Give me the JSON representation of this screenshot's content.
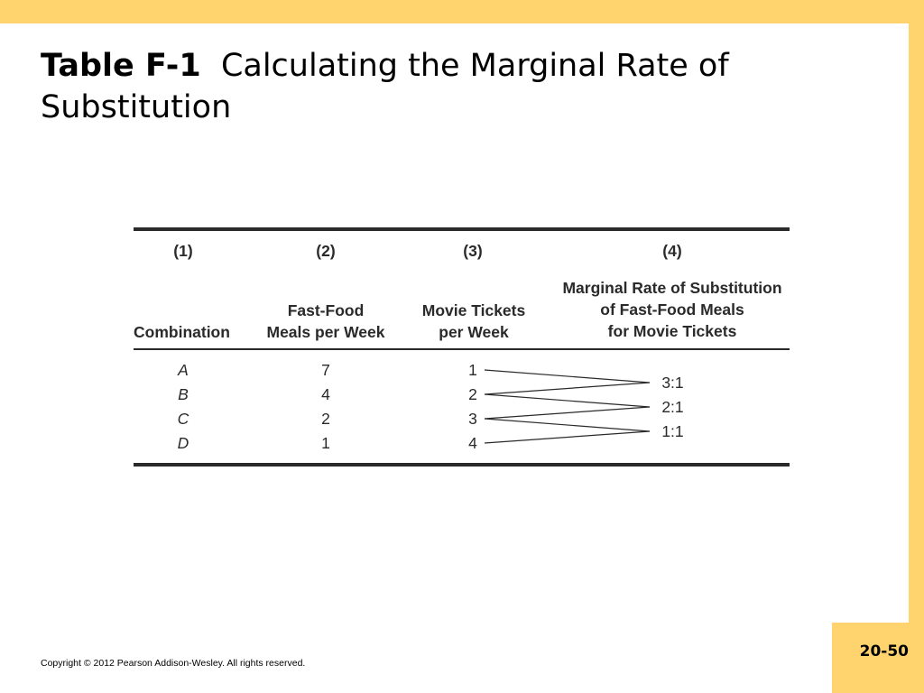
{
  "slide": {
    "title_label": "Table F-1",
    "title_text": "Calculating the Marginal Rate of Substitution",
    "copyright": "Copyright © 2012 Pearson Addison-Wesley. All rights reserved.",
    "page_number": "20-50"
  },
  "table": {
    "column_numbers": [
      "(1)",
      "(2)",
      "(3)",
      "(4)"
    ],
    "column_headers": [
      [
        "Combination"
      ],
      [
        "Fast-Food",
        "Meals per Week"
      ],
      [
        "Movie Tickets",
        "per Week"
      ],
      [
        "Marginal Rate of Substitution",
        "of Fast-Food Meals",
        "for Movie Tickets"
      ]
    ],
    "rows": [
      {
        "combination": "A",
        "meals": "7",
        "tickets": "1"
      },
      {
        "combination": "B",
        "meals": "4",
        "tickets": "2"
      },
      {
        "combination": "C",
        "meals": "2",
        "tickets": "3"
      },
      {
        "combination": "D",
        "meals": "1",
        "tickets": "4"
      }
    ],
    "mrs": [
      "3:1",
      "2:1",
      "1:1"
    ]
  }
}
